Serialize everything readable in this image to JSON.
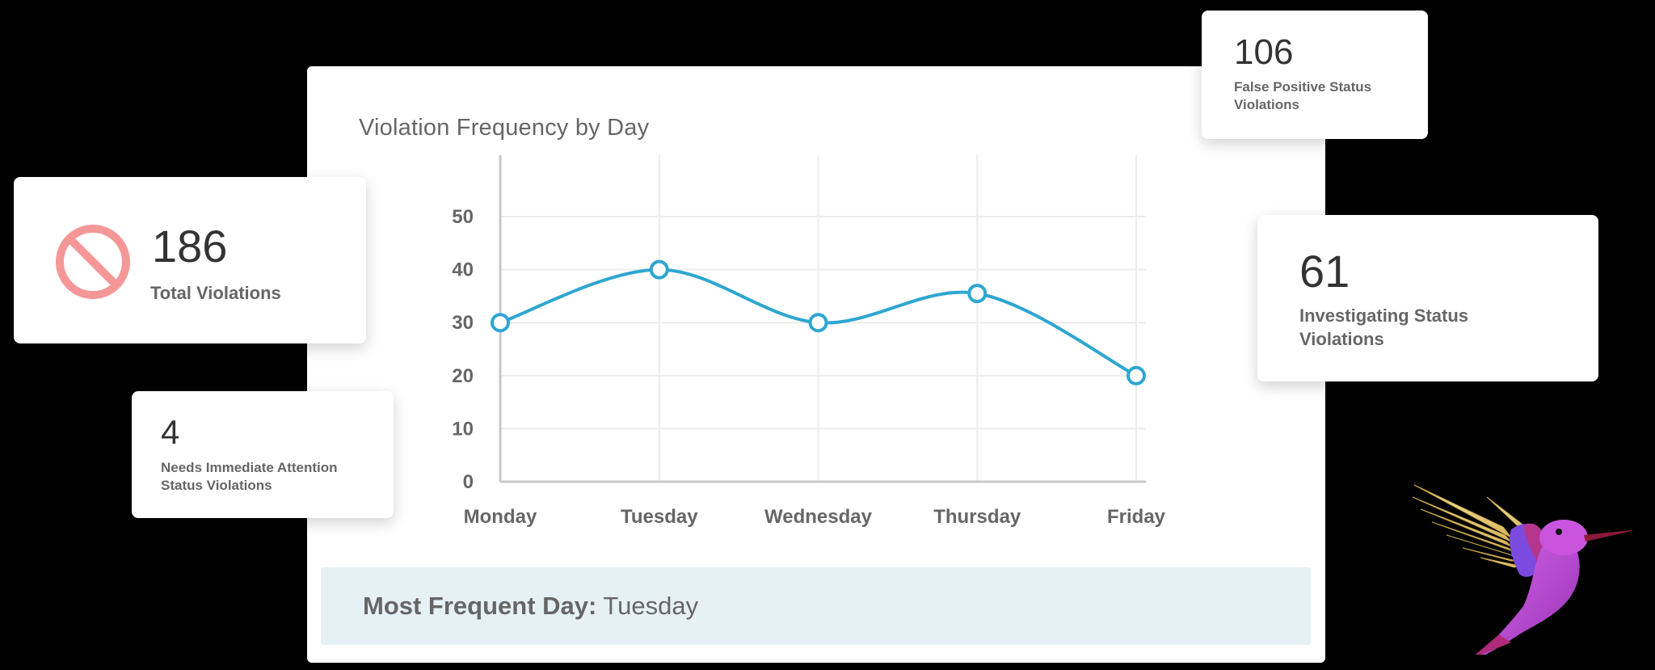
{
  "chart_panel": {
    "title": "Violation Frequency by Day",
    "summary": {
      "label": "Most Frequent Day:",
      "value": "Tuesday"
    }
  },
  "chart_data": {
    "type": "line",
    "title": "Violation Frequency by Day",
    "categories": [
      "Monday",
      "Tuesday",
      "Wednesday",
      "Thursday",
      "Friday"
    ],
    "series": [
      {
        "name": "Violations",
        "values": [
          30,
          40,
          30,
          35.5,
          20
        ],
        "color": "#2ea6d1"
      }
    ],
    "xlabel": "",
    "ylabel": "",
    "ylim": [
      0,
      50
    ],
    "yticks": [
      "0",
      "10",
      "20",
      "30",
      "40",
      "50"
    ],
    "grid": true,
    "smooth": true,
    "markers": "hollow-circle"
  },
  "stats": {
    "total": {
      "value": "186",
      "label": "Total Violations",
      "icon": "prohibited-icon",
      "icon_color": "#f59797"
    },
    "needs_attention": {
      "value": "4",
      "label": "Needs Immediate Attention Status Violations"
    },
    "false_positive": {
      "value": "106",
      "label": "False Positive Status Violations"
    },
    "investigating": {
      "value": "61",
      "label": "Investigating Status Violations"
    }
  },
  "decoration": {
    "image": "hummingbird-illustration"
  },
  "colors": {
    "line": "#2ea6d1",
    "banner_bg": "#e6f1f6",
    "text_primary": "#333333",
    "text_secondary": "#666666",
    "prohibit_icon": "#f59797"
  }
}
